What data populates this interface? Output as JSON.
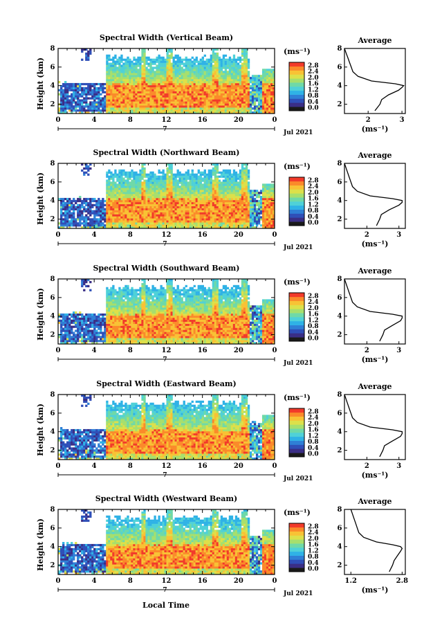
{
  "figure": {
    "xlabel": "Local Time",
    "date_label": "Jul 2021",
    "day_label": "7",
    "x_ticks": [
      "0",
      "4",
      "8",
      "12",
      "16",
      "20",
      "0"
    ],
    "y_label": "Height (km)",
    "y_ticks": [
      "2",
      "4",
      "6",
      "8"
    ],
    "colorbar_unit": "(ms⁻¹)",
    "colorbar_ticks": [
      "0.0",
      "0.4",
      "0.8",
      "1.2",
      "1.6",
      "2.0",
      "2.4",
      "2.8"
    ],
    "avg_title": "Average",
    "avg_xlabel": "(ms⁻¹)"
  },
  "colors": {
    "low": "#2b2f8f",
    "mid": "#37c6e6",
    "high": "#f23a2a",
    "scale": [
      "#1a1a1a",
      "#3a2e86",
      "#2f4fb8",
      "#2f7fd6",
      "#2fb2e6",
      "#4fd1d8",
      "#6fd9a8",
      "#a7df6d",
      "#dde04a",
      "#f8c235",
      "#fb8a2a",
      "#f23a2a"
    ]
  },
  "chart_data": [
    {
      "type": "heatmap",
      "title": "Spectral Width (Vertical Beam)",
      "avg_ticks": [
        "2",
        "3"
      ],
      "avg_xlim": [
        1.3,
        3.1
      ],
      "x_range_hours": [
        0,
        24
      ],
      "y_range_km": [
        1,
        8
      ],
      "colorbar_range": [
        0.0,
        2.8
      ],
      "avg_profile": {
        "height_km": [
          1.3,
          2.0,
          2.5,
          3.0,
          3.5,
          3.8,
          4.0,
          4.2,
          4.5,
          5.0,
          5.5,
          6.0,
          6.5,
          7.0,
          7.5,
          8.0
        ],
        "value": [
          2.2,
          2.35,
          2.4,
          2.6,
          2.9,
          3.0,
          3.05,
          2.8,
          2.1,
          1.7,
          1.55,
          1.5,
          1.45,
          1.4,
          1.35,
          1.3
        ]
      }
    },
    {
      "type": "heatmap",
      "title": "Spectral Width (Northward Beam)",
      "avg_ticks": [
        "2",
        "3"
      ],
      "avg_xlim": [
        1.3,
        3.2
      ],
      "x_range_hours": [
        0,
        24
      ],
      "y_range_km": [
        1,
        8
      ],
      "colorbar_range": [
        0.0,
        2.8
      ],
      "avg_profile": {
        "height_km": [
          1.3,
          2.0,
          2.5,
          3.0,
          3.5,
          3.8,
          4.0,
          4.2,
          4.5,
          5.0,
          5.5,
          6.0,
          6.5,
          7.0,
          7.5,
          8.0
        ],
        "value": [
          2.3,
          2.4,
          2.45,
          2.7,
          3.0,
          3.1,
          3.1,
          2.8,
          2.1,
          1.7,
          1.55,
          1.5,
          1.45,
          1.4,
          1.35,
          1.3
        ]
      }
    },
    {
      "type": "heatmap",
      "title": "Spectral Width (Southward Beam)",
      "avg_ticks": [
        "2",
        "3"
      ],
      "avg_xlim": [
        1.3,
        3.2
      ],
      "x_range_hours": [
        0,
        24
      ],
      "y_range_km": [
        1,
        8
      ],
      "colorbar_range": [
        0.0,
        2.8
      ],
      "avg_profile": {
        "height_km": [
          1.3,
          2.0,
          2.5,
          3.0,
          3.5,
          3.8,
          4.0,
          4.2,
          4.5,
          5.0,
          5.5,
          6.0,
          6.5,
          7.0,
          7.5,
          8.0
        ],
        "value": [
          2.4,
          2.5,
          2.55,
          2.8,
          3.05,
          3.1,
          3.1,
          2.8,
          2.1,
          1.7,
          1.55,
          1.5,
          1.45,
          1.4,
          1.35,
          1.3
        ]
      }
    },
    {
      "type": "heatmap",
      "title": "Spectral Width (Eastward Beam)",
      "avg_ticks": [
        "2",
        "3"
      ],
      "avg_xlim": [
        1.3,
        3.2
      ],
      "x_range_hours": [
        0,
        24
      ],
      "y_range_km": [
        1,
        8
      ],
      "colorbar_range": [
        0.0,
        2.8
      ],
      "avg_profile": {
        "height_km": [
          1.3,
          2.0,
          2.5,
          3.0,
          3.5,
          3.8,
          4.0,
          4.2,
          4.5,
          5.0,
          5.5,
          6.0,
          6.5,
          7.0,
          7.5,
          8.0
        ],
        "value": [
          2.4,
          2.5,
          2.55,
          2.8,
          3.05,
          3.1,
          3.1,
          2.8,
          2.1,
          1.7,
          1.55,
          1.5,
          1.45,
          1.4,
          1.35,
          1.3
        ]
      }
    },
    {
      "type": "heatmap",
      "title": "Spectral Width (Westward Beam)",
      "avg_ticks": [
        "1.2",
        "2.8"
      ],
      "avg_xlim": [
        1.0,
        2.9
      ],
      "x_range_hours": [
        0,
        24
      ],
      "y_range_km": [
        1,
        8
      ],
      "colorbar_range": [
        0.0,
        2.8
      ],
      "avg_profile": {
        "height_km": [
          1.3,
          2.0,
          2.5,
          3.0,
          3.5,
          3.8,
          4.0,
          4.2,
          4.5,
          5.0,
          5.5,
          6.0,
          6.5,
          7.0,
          7.5,
          8.0
        ],
        "value": [
          2.4,
          2.5,
          2.55,
          2.65,
          2.75,
          2.8,
          2.75,
          2.5,
          2.0,
          1.6,
          1.45,
          1.4,
          1.35,
          1.3,
          1.25,
          1.2
        ]
      }
    }
  ]
}
